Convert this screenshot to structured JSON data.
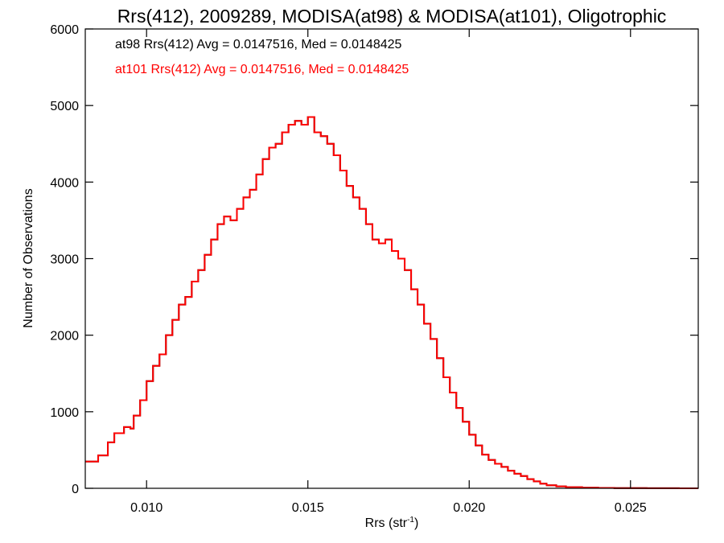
{
  "chart_data": {
    "type": "line",
    "title": "Rrs(412), 2009289, MODISA(at98) & MODISA(at101), Oligotrophic",
    "xlabel": "Rrs (str",
    "xlabel_sup": "-1",
    "xlabel_close": ")",
    "ylabel": "Number of Observations",
    "xlim": [
      0.0081,
      0.0271
    ],
    "ylim": [
      0,
      6000
    ],
    "xticks": [
      {
        "value": 0.01,
        "label": "0.010"
      },
      {
        "value": 0.015,
        "label": "0.015"
      },
      {
        "value": 0.02,
        "label": "0.020"
      },
      {
        "value": 0.025,
        "label": "0.025"
      }
    ],
    "yticks": [
      {
        "value": 0,
        "label": "0"
      },
      {
        "value": 1000,
        "label": "1000"
      },
      {
        "value": 2000,
        "label": "2000"
      },
      {
        "value": 3000,
        "label": "3000"
      },
      {
        "value": 4000,
        "label": "4000"
      },
      {
        "value": 5000,
        "label": "5000"
      },
      {
        "value": 6000,
        "label": "6000"
      }
    ],
    "grid": false,
    "legend_position": "top-left",
    "annotations": [
      {
        "text": "at98 Rrs(412) Avg = 0.0147516, Med = 0.0148425",
        "color": "#000000"
      },
      {
        "text": "at101 Rrs(412) Avg = 0.0147516, Med = 0.0148425",
        "color": "#ff0000"
      }
    ],
    "series": [
      {
        "color": "#000000",
        "step": true,
        "x": [
          0.0081,
          0.0085,
          0.0088,
          0.009,
          0.0093,
          0.0095,
          0.0096,
          0.0098,
          0.01,
          0.0102,
          0.0104,
          0.0106,
          0.0108,
          0.011,
          0.0112,
          0.0114,
          0.0116,
          0.0118,
          0.012,
          0.0122,
          0.0124,
          0.0126,
          0.0128,
          0.013,
          0.0132,
          0.0134,
          0.0136,
          0.0138,
          0.014,
          0.0142,
          0.0144,
          0.0146,
          0.0148,
          0.015,
          0.0152,
          0.0154,
          0.0156,
          0.0158,
          0.016,
          0.0162,
          0.0164,
          0.0166,
          0.0168,
          0.017,
          0.0172,
          0.0174,
          0.0176,
          0.0178,
          0.018,
          0.0182,
          0.0184,
          0.0186,
          0.0188,
          0.019,
          0.0192,
          0.0194,
          0.0196,
          0.0198,
          0.02,
          0.0202,
          0.0204,
          0.0206,
          0.0208,
          0.021,
          0.0212,
          0.0214,
          0.0216,
          0.0218,
          0.022,
          0.0222,
          0.0224,
          0.0227,
          0.023,
          0.0235,
          0.024,
          0.0245,
          0.025,
          0.0255,
          0.026,
          0.0265,
          0.0271
        ],
        "y": [
          350,
          430,
          600,
          720,
          800,
          780,
          950,
          1150,
          1400,
          1600,
          1750,
          2000,
          2200,
          2400,
          2500,
          2700,
          2850,
          3050,
          3250,
          3450,
          3550,
          3500,
          3650,
          3800,
          3900,
          4100,
          4300,
          4450,
          4500,
          4650,
          4750,
          4800,
          4750,
          4850,
          4650,
          4600,
          4500,
          4350,
          4150,
          3950,
          3800,
          3650,
          3450,
          3250,
          3200,
          3250,
          3100,
          3000,
          2850,
          2600,
          2400,
          2150,
          1950,
          1700,
          1450,
          1250,
          1050,
          870,
          700,
          560,
          440,
          370,
          320,
          280,
          230,
          190,
          160,
          120,
          90,
          60,
          40,
          25,
          15,
          8,
          5,
          3,
          2,
          1,
          1,
          0,
          0
        ]
      },
      {
        "color": "#ff0000",
        "step": true,
        "x": [
          0.0081,
          0.0085,
          0.0088,
          0.009,
          0.0093,
          0.0095,
          0.0096,
          0.0098,
          0.01,
          0.0102,
          0.0104,
          0.0106,
          0.0108,
          0.011,
          0.0112,
          0.0114,
          0.0116,
          0.0118,
          0.012,
          0.0122,
          0.0124,
          0.0126,
          0.0128,
          0.013,
          0.0132,
          0.0134,
          0.0136,
          0.0138,
          0.014,
          0.0142,
          0.0144,
          0.0146,
          0.0148,
          0.015,
          0.0152,
          0.0154,
          0.0156,
          0.0158,
          0.016,
          0.0162,
          0.0164,
          0.0166,
          0.0168,
          0.017,
          0.0172,
          0.0174,
          0.0176,
          0.0178,
          0.018,
          0.0182,
          0.0184,
          0.0186,
          0.0188,
          0.019,
          0.0192,
          0.0194,
          0.0196,
          0.0198,
          0.02,
          0.0202,
          0.0204,
          0.0206,
          0.0208,
          0.021,
          0.0212,
          0.0214,
          0.0216,
          0.0218,
          0.022,
          0.0222,
          0.0224,
          0.0227,
          0.023,
          0.0235,
          0.024,
          0.0245,
          0.025,
          0.0255,
          0.026,
          0.0265,
          0.0271
        ],
        "y": [
          350,
          430,
          600,
          720,
          800,
          780,
          950,
          1150,
          1400,
          1600,
          1750,
          2000,
          2200,
          2400,
          2500,
          2700,
          2850,
          3050,
          3250,
          3450,
          3550,
          3500,
          3650,
          3800,
          3900,
          4100,
          4300,
          4450,
          4500,
          4650,
          4750,
          4800,
          4750,
          4850,
          4650,
          4600,
          4500,
          4350,
          4150,
          3950,
          3800,
          3650,
          3450,
          3250,
          3200,
          3250,
          3100,
          3000,
          2850,
          2600,
          2400,
          2150,
          1950,
          1700,
          1450,
          1250,
          1050,
          870,
          700,
          560,
          440,
          370,
          320,
          280,
          230,
          190,
          160,
          120,
          90,
          60,
          40,
          25,
          15,
          8,
          5,
          3,
          2,
          1,
          1,
          0,
          0
        ]
      }
    ]
  }
}
